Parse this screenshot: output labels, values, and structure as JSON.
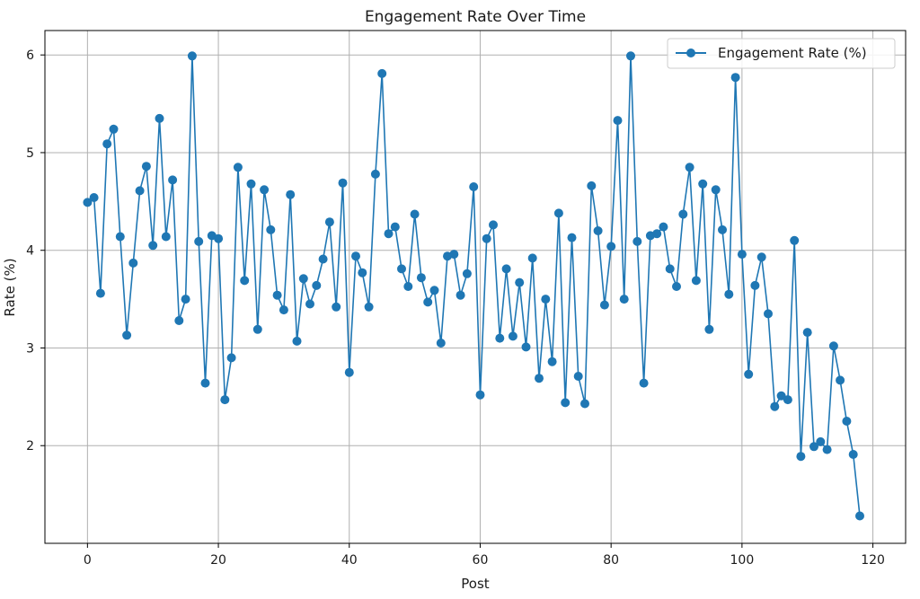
{
  "chart_data": {
    "type": "line",
    "title": "Engagement Rate Over Time",
    "xlabel": "Post",
    "ylabel": "Rate (%)",
    "xlim": [
      -6.5,
      125
    ],
    "ylim": [
      1.0,
      6.25
    ],
    "xticks": [
      0,
      20,
      40,
      60,
      80,
      100,
      120
    ],
    "yticks": [
      2,
      3,
      4,
      5,
      6
    ],
    "grid": true,
    "legend_position": "top-right",
    "series": [
      {
        "name": "Engagement Rate (%)",
        "color": "#1f77b4",
        "marker": "circle",
        "x": [
          0,
          1,
          2,
          3,
          4,
          5,
          6,
          7,
          8,
          9,
          10,
          11,
          12,
          13,
          14,
          15,
          16,
          17,
          18,
          19,
          20,
          21,
          22,
          23,
          24,
          25,
          26,
          27,
          28,
          29,
          30,
          31,
          32,
          33,
          34,
          35,
          36,
          37,
          38,
          39,
          40,
          41,
          42,
          43,
          44,
          45,
          46,
          47,
          48,
          49,
          50,
          51,
          52,
          53,
          54,
          55,
          56,
          57,
          58,
          59,
          60,
          61,
          62,
          63,
          64,
          65,
          66,
          67,
          68,
          69,
          70,
          71,
          72,
          73,
          74,
          75,
          76,
          77,
          78,
          79,
          80,
          81,
          82,
          83,
          84,
          85,
          86,
          87,
          88,
          89,
          90,
          91,
          92,
          93,
          94,
          95,
          96,
          97,
          98,
          99,
          100,
          101,
          102,
          103,
          104,
          105,
          106,
          107,
          108,
          109,
          110,
          111,
          112,
          113,
          114,
          115,
          116,
          117,
          118
        ],
        "values": [
          4.49,
          4.54,
          3.56,
          5.09,
          5.24,
          4.14,
          3.13,
          3.87,
          4.61,
          4.86,
          4.05,
          5.35,
          4.14,
          4.72,
          3.28,
          3.5,
          5.99,
          4.09,
          2.64,
          4.15,
          4.12,
          2.47,
          2.9,
          4.85,
          3.69,
          4.68,
          3.19,
          4.62,
          4.21,
          3.54,
          3.39,
          4.57,
          3.07,
          3.71,
          3.45,
          3.64,
          3.91,
          4.29,
          3.42,
          4.69,
          2.75,
          3.94,
          3.77,
          3.42,
          4.78,
          5.81,
          4.17,
          4.24,
          3.81,
          3.63,
          4.37,
          3.72,
          3.47,
          3.59,
          3.05,
          3.94,
          3.96,
          3.54,
          3.76,
          4.65,
          2.52,
          4.12,
          4.26,
          3.1,
          3.81,
          3.12,
          3.67,
          3.01,
          3.92,
          2.69,
          3.5,
          2.86,
          4.38,
          2.44,
          4.13,
          2.71,
          2.43,
          4.66,
          4.2,
          3.44,
          4.04,
          5.33,
          3.5,
          5.99,
          4.09,
          2.64,
          4.15,
          4.17,
          4.24,
          3.81,
          3.63,
          4.37,
          4.85,
          3.69,
          4.68,
          3.19,
          4.62,
          4.21,
          3.55,
          5.77,
          3.96,
          2.73,
          3.64,
          3.93,
          3.35,
          2.4,
          2.51,
          2.47,
          4.1,
          1.89,
          3.16,
          1.99,
          2.04,
          1.96,
          3.02,
          2.67,
          2.25,
          1.91,
          1.28
        ]
      }
    ]
  }
}
